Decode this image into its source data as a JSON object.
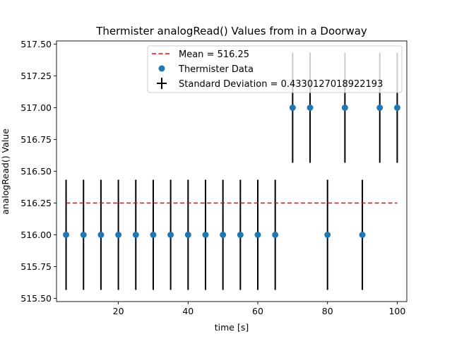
{
  "chart_data": {
    "type": "scatter",
    "title": "Thermister analogRead() Values from in a Doorway",
    "xlabel": "time [s]",
    "ylabel": "analogRead() Value",
    "xlim": [
      2.25,
      102.75
    ],
    "ylim": [
      515.475,
      517.525
    ],
    "x_ticks": [
      20,
      40,
      60,
      80,
      100
    ],
    "x_tick_labels": [
      "20",
      "40",
      "60",
      "80",
      "100"
    ],
    "y_ticks": [
      515.5,
      515.75,
      516.0,
      516.25,
      516.5,
      516.75,
      517.0,
      517.25,
      517.5
    ],
    "y_tick_labels": [
      "515.50",
      "515.75",
      "516.00",
      "516.25",
      "516.50",
      "516.75",
      "517.00",
      "517.25",
      "517.50"
    ],
    "grid": false,
    "legend_position": "top-right",
    "series": [
      {
        "name": "Thermister Data",
        "kind": "points_with_errorbars",
        "color": "#1f77b4",
        "errorbar_color": "#000000",
        "error": 0.4330127018922193,
        "x": [
          5,
          10,
          15,
          20,
          25,
          30,
          35,
          40,
          45,
          50,
          55,
          60,
          65,
          70,
          75,
          80,
          85,
          90,
          95,
          100
        ],
        "y": [
          516,
          516,
          516,
          516,
          516,
          516,
          516,
          516,
          516,
          516,
          516,
          516,
          516,
          517,
          517,
          516,
          517,
          516,
          517,
          517
        ]
      },
      {
        "name": "Mean = 516.25",
        "kind": "line",
        "style": "dashed",
        "color": "#ff0000",
        "x": [
          5,
          100
        ],
        "y": [
          516.25,
          516.25
        ]
      }
    ],
    "legend": [
      {
        "label": "Mean = 516.25",
        "marker": "dashed-line",
        "color": "#ff0000"
      },
      {
        "label": "Thermister Data",
        "marker": "dot",
        "color": "#1f77b4"
      },
      {
        "label": "Standard Deviation = 0.4330127018922193",
        "marker": "cross",
        "color": "#000000"
      }
    ]
  }
}
